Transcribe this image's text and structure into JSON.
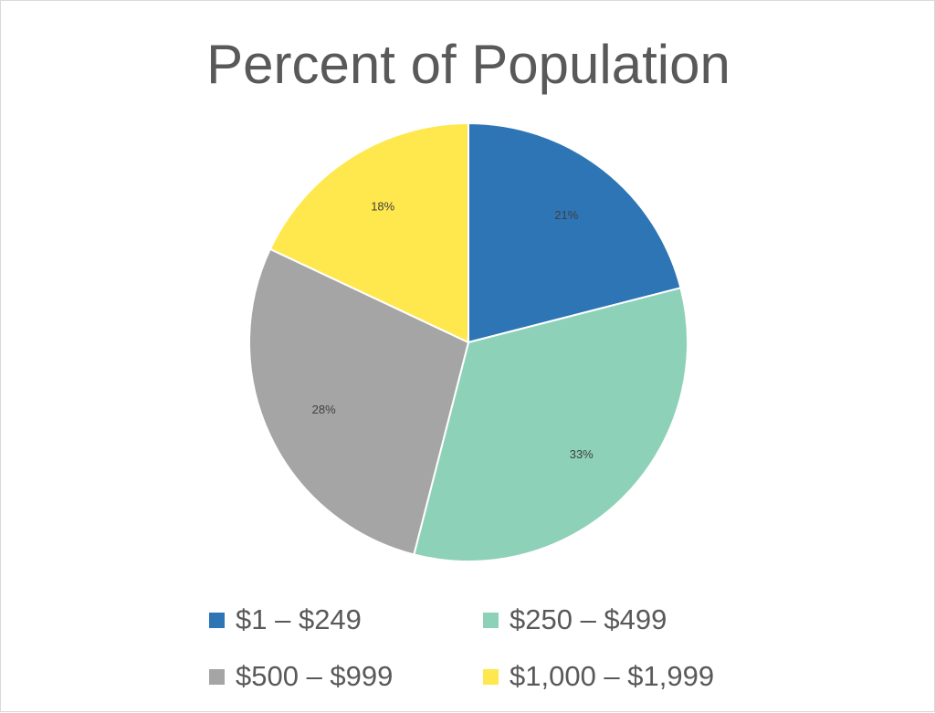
{
  "chart_data": {
    "type": "pie",
    "title": "Percent of Population",
    "categories": [
      "$1 – $249",
      "$250 – $499",
      "$500 – $999",
      "$1,000 – $1,999"
    ],
    "values": [
      21,
      33,
      28,
      18
    ],
    "data_labels": [
      "21%",
      "33%",
      "28%",
      "18%"
    ],
    "colors": [
      "#2e75b6",
      "#8dd1b9",
      "#a5a5a5",
      "#ffe84d"
    ],
    "legend_position": "bottom",
    "start_angle": "12 o'clock, clockwise"
  }
}
